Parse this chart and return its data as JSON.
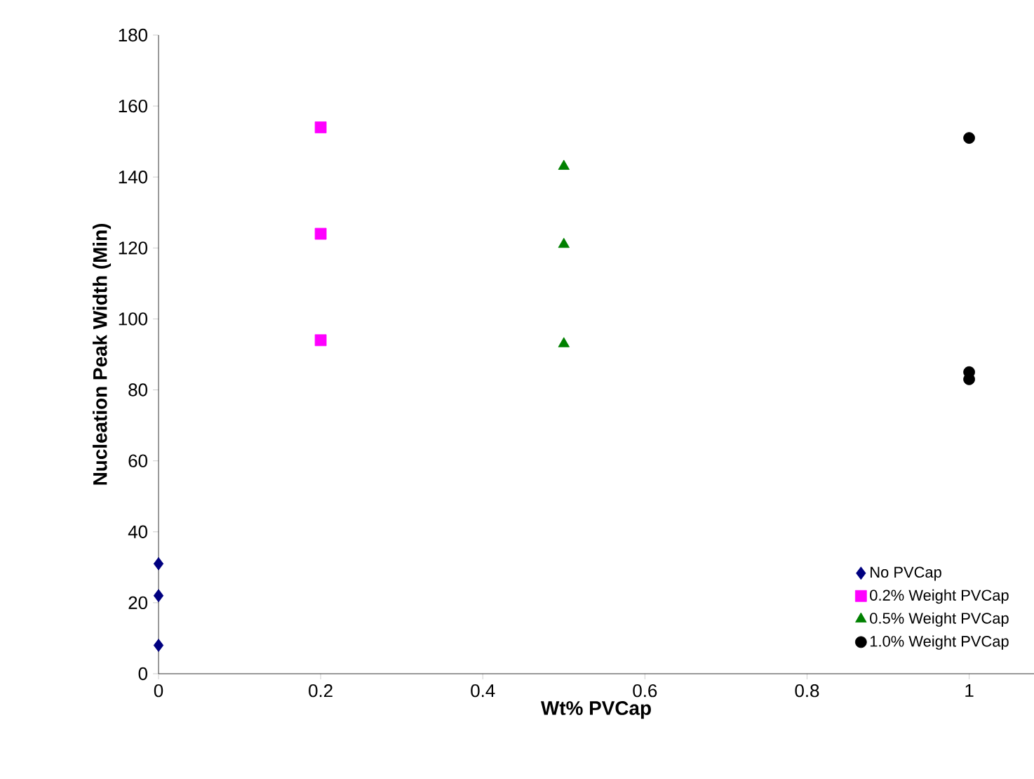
{
  "chart_data": {
    "type": "scatter",
    "xlabel": "Wt% PVCap",
    "ylabel": "Nucleation Peak Width (Min)",
    "xlim": [
      0,
      1.08
    ],
    "ylim": [
      0,
      180
    ],
    "xticks": [
      0,
      0.2,
      0.4,
      0.6,
      0.8,
      1
    ],
    "yticks": [
      0,
      20,
      40,
      60,
      80,
      100,
      120,
      140,
      160,
      180
    ],
    "grid": false,
    "legend": "bottom right",
    "series": [
      {
        "name": "No PVCap",
        "color": "#000080",
        "marker": "diamond",
        "x": [
          0,
          0,
          0
        ],
        "values": [
          31,
          22,
          8
        ]
      },
      {
        "name": "0.2% Weight PVCap",
        "color": "#ff00ff",
        "marker": "square",
        "x": [
          0.2,
          0.2,
          0.2
        ],
        "values": [
          154,
          124,
          94
        ]
      },
      {
        "name": "0.5% Weight PVCap",
        "color": "#008000",
        "marker": "triangle",
        "x": [
          0.5,
          0.5,
          0.5
        ],
        "values": [
          143,
          121,
          93
        ]
      },
      {
        "name": "1.0% Weight PVCap",
        "color": "#000000",
        "marker": "circle",
        "x": [
          1,
          1,
          1
        ],
        "values": [
          151,
          85,
          83
        ]
      }
    ]
  }
}
